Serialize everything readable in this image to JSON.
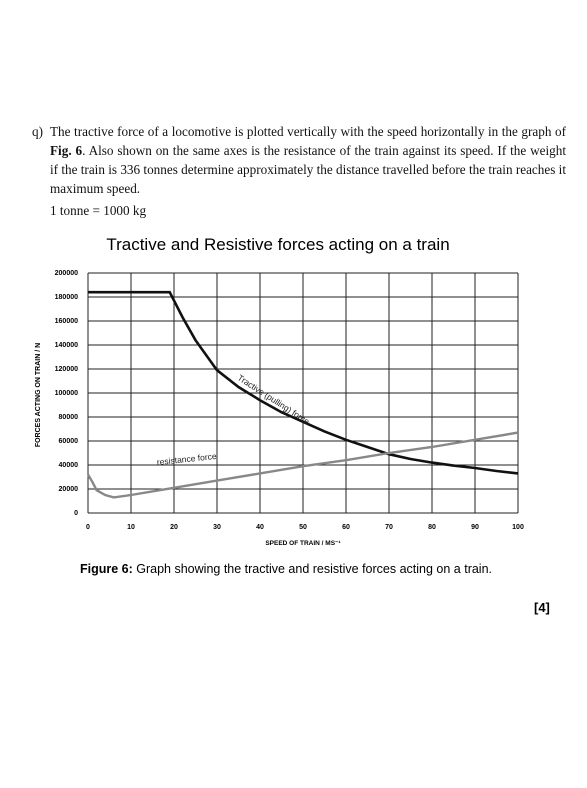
{
  "question": {
    "label": "q)",
    "text_parts": [
      "The tractive force of a locomotive is plotted vertically with the speed horizontally in the graph of ",
      "Fig. 6",
      ". Also shown on the same axes is the resistance of the train against its speed. If the weight if the train is 336 tonnes determine approximately the distance travelled before the train reaches it maximum speed."
    ],
    "note": "1 tonne = 1000 kg"
  },
  "chart_data": {
    "type": "line",
    "title": "Tractive and Resistive forces acting on a train",
    "x_label": "SPEED OF TRAIN / MS⁻¹",
    "y_label": "FORCES ACTING ON TRAIN / N",
    "xlim": [
      0,
      100
    ],
    "xticks": [
      0,
      10,
      20,
      30,
      40,
      50,
      60,
      70,
      80,
      90,
      100
    ],
    "ylim": [
      0,
      200000
    ],
    "yticks": [
      0,
      20000,
      40000,
      60000,
      80000,
      100000,
      120000,
      140000,
      160000,
      180000,
      200000
    ],
    "grid": true,
    "series": [
      {
        "name": "Tractive (pulling) force",
        "color": "#111111",
        "x": [
          0,
          19,
          22,
          25,
          30,
          35,
          40,
          45,
          50,
          55,
          60,
          65,
          70,
          75,
          80,
          85,
          90,
          95,
          100
        ],
        "values": [
          184000,
          184000,
          163000,
          144000,
          119000,
          105000,
          94000,
          84000,
          76000,
          68000,
          61000,
          55000,
          49000,
          45000,
          42000,
          39500,
          37500,
          35000,
          33000
        ]
      },
      {
        "name": "resistance force",
        "color": "#888888",
        "x": [
          0,
          1,
          2,
          4,
          6,
          10,
          20,
          30,
          40,
          50,
          60,
          70,
          80,
          90,
          100
        ],
        "values": [
          32000,
          26000,
          19000,
          15000,
          13000,
          15000,
          21000,
          27000,
          33000,
          39000,
          44000,
          50000,
          55000,
          61000,
          67000
        ]
      }
    ]
  },
  "caption": {
    "label": "Figure 6:",
    "text": " Graph showing the tractive and resistive forces acting on a train."
  },
  "marks": "[4]"
}
